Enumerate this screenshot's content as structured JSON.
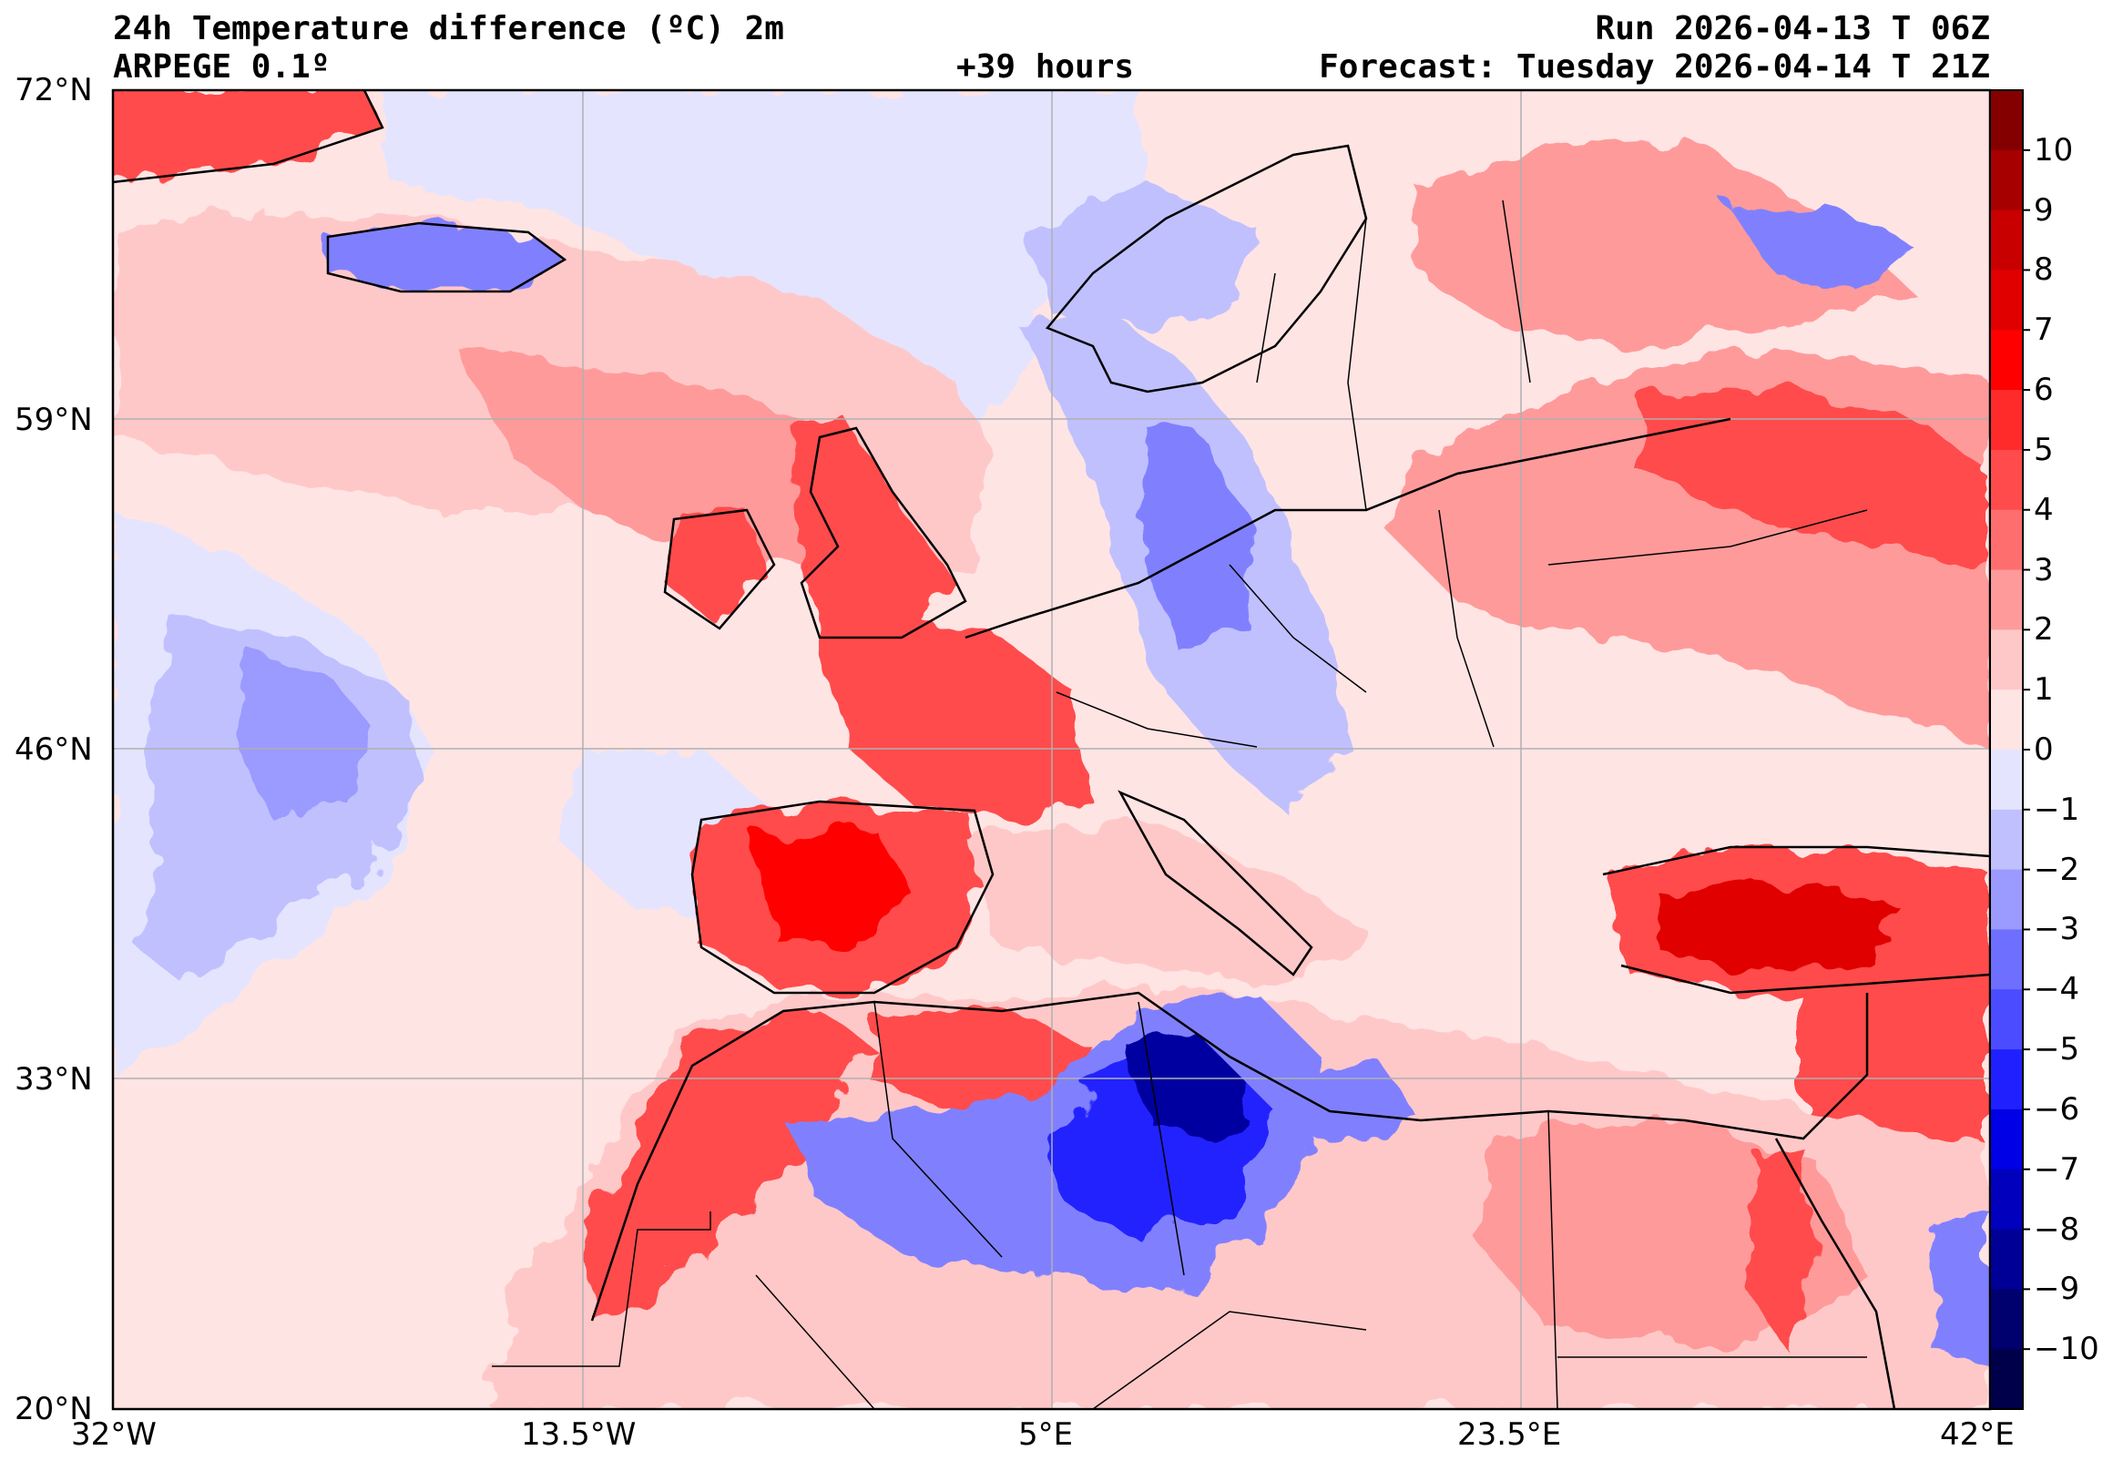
{
  "header": {
    "title": "24h Temperature difference (ºC) 2m",
    "model": "ARPEGE 0.1º",
    "lead": "+39 hours",
    "run": "Run 2026-04-13 T 06Z",
    "forecast": "Forecast: Tuesday 2026-04-14 T 21Z"
  },
  "map": {
    "lon_range": [
      -32,
      42
    ],
    "lat_range": [
      20,
      72
    ],
    "lat_labels": [
      "72°N",
      "59°N",
      "46°N",
      "33°N",
      "20°N"
    ],
    "lon_labels": [
      "32°W",
      "13.5°W",
      "5°E",
      "23.5°E",
      "42°E"
    ]
  },
  "colorbar": {
    "labels": [
      "10",
      "9",
      "8",
      "7",
      "6",
      "5",
      "4",
      "3",
      "2",
      "1",
      "0",
      "−1",
      "−2",
      "−3",
      "−4",
      "−5",
      "−6",
      "−7",
      "−8",
      "−9",
      "−10"
    ],
    "colors": [
      "#840000",
      "#a60000",
      "#c80000",
      "#e00000",
      "#ff0000",
      "#ff2a2a",
      "#ff4b4b",
      "#ff6e6e",
      "#ff9a9a",
      "#ffc8c8",
      "#ffe4e4",
      "#e4e4ff",
      "#c0c0ff",
      "#9a9aff",
      "#6e6eff",
      "#4b4bff",
      "#2020ff",
      "#0000e6",
      "#0000bd",
      "#000096",
      "#00006e",
      "#00004a"
    ]
  },
  "palette": {
    "ocean_warm": "#ffe4e4",
    "ocean_cool": "#e4e4ff",
    "warm1": "#ffc8c8",
    "warm2": "#ff9a9a",
    "warm3": "#ff4b4b",
    "warm4": "#e00000",
    "cool1": "#c0c0ff",
    "cool2": "#8080ff",
    "cool3": "#2020ff",
    "cool4": "#0000a0"
  }
}
